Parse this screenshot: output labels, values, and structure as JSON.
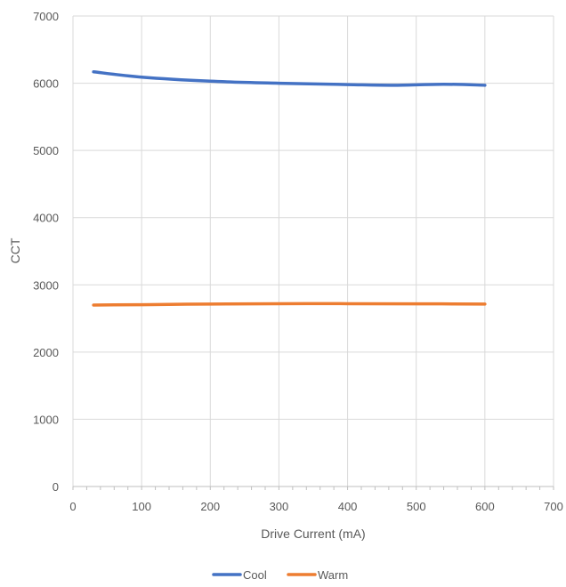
{
  "chart_data": {
    "type": "line",
    "title": "",
    "xlabel": "Drive Current (mA)",
    "ylabel": "CCT",
    "xlim": [
      0,
      700
    ],
    "ylim": [
      0,
      7000
    ],
    "x_ticks": [
      0,
      100,
      200,
      300,
      400,
      500,
      600,
      700
    ],
    "y_ticks": [
      0,
      1000,
      2000,
      3000,
      4000,
      5000,
      6000,
      7000
    ],
    "x_tick_labels": [
      "0",
      "100",
      "200",
      "300",
      "400",
      "500",
      "600",
      "700"
    ],
    "y_tick_labels": [
      "0",
      "1000",
      "2000",
      "3000",
      "4000",
      "5000",
      "6000",
      "7000"
    ],
    "grid": true,
    "legend_position": "bottom",
    "series": [
      {
        "name": "Cool",
        "color": "#4472C4",
        "x": [
          30,
          100,
          200,
          300,
          400,
          470,
          540,
          600
        ],
        "y": [
          6170,
          6090,
          6030,
          6000,
          5980,
          5970,
          5985,
          5970
        ]
      },
      {
        "name": "Warm",
        "color": "#ED7D31",
        "x": [
          30,
          100,
          200,
          300,
          400,
          500,
          600
        ],
        "y": [
          2700,
          2705,
          2715,
          2720,
          2720,
          2718,
          2715
        ]
      }
    ]
  }
}
